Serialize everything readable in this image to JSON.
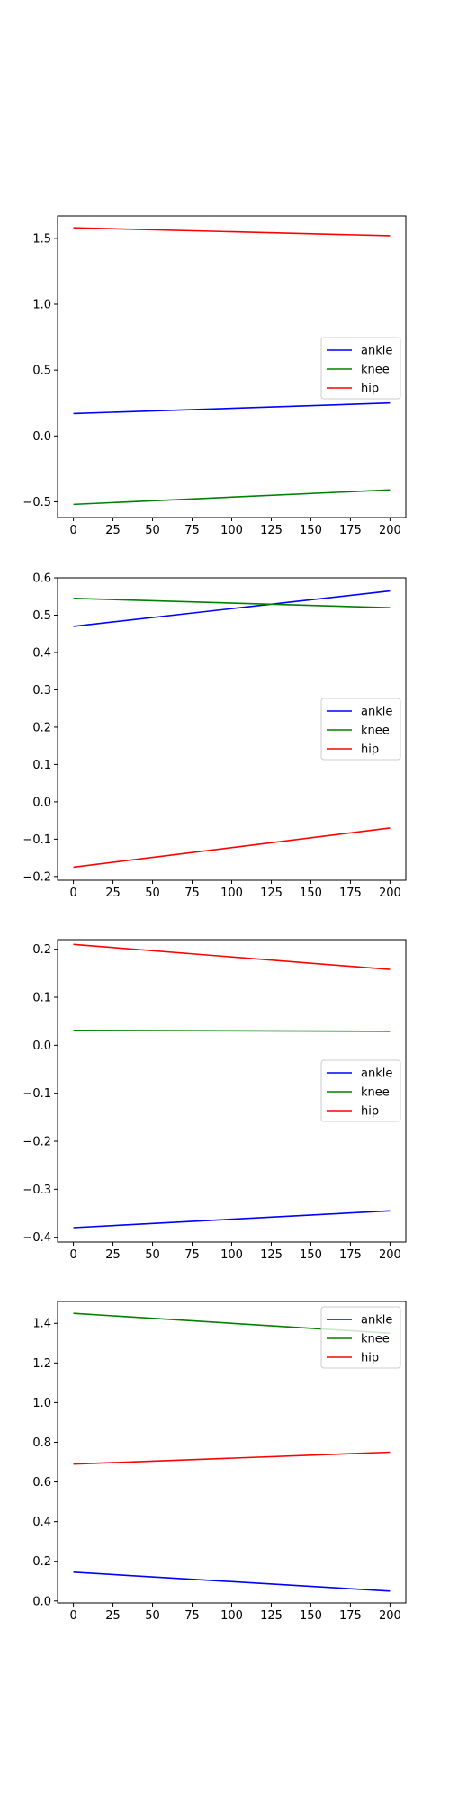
{
  "chart_data": [
    {
      "type": "line",
      "x": [
        0,
        200
      ],
      "xlim": [
        -10,
        210
      ],
      "ylim": [
        -0.62,
        1.67
      ],
      "xticks": [
        0,
        25,
        50,
        75,
        100,
        125,
        150,
        175,
        200
      ],
      "xtick_labels": [
        "0",
        "25",
        "50",
        "75",
        "100",
        "125",
        "150",
        "175",
        "200"
      ],
      "yticks": [
        -0.5,
        0.0,
        0.5,
        1.0,
        1.5
      ],
      "ytick_labels": [
        "−0.5",
        "0.0",
        "0.5",
        "1.0",
        "1.5"
      ],
      "legend_position": "center-right",
      "series": [
        {
          "name": "ankle",
          "color": "#0000ff",
          "values": [
            0.17,
            0.25
          ]
        },
        {
          "name": "knee",
          "color": "#008000",
          "values": [
            -0.52,
            -0.41
          ]
        },
        {
          "name": "hip",
          "color": "#ff0000",
          "values": [
            1.58,
            1.52
          ]
        }
      ]
    },
    {
      "type": "line",
      "x": [
        0,
        200
      ],
      "xlim": [
        -10,
        210
      ],
      "ylim": [
        -0.21,
        0.6
      ],
      "xticks": [
        0,
        25,
        50,
        75,
        100,
        125,
        150,
        175,
        200
      ],
      "xtick_labels": [
        "0",
        "25",
        "50",
        "75",
        "100",
        "125",
        "150",
        "175",
        "200"
      ],
      "yticks": [
        -0.2,
        -0.1,
        0.0,
        0.1,
        0.2,
        0.3,
        0.4,
        0.5,
        0.6
      ],
      "ytick_labels": [
        "−0.2",
        "−0.1",
        "0.0",
        "0.1",
        "0.2",
        "0.3",
        "0.4",
        "0.5",
        "0.6"
      ],
      "legend_position": "center-right",
      "series": [
        {
          "name": "ankle",
          "color": "#0000ff",
          "values": [
            0.47,
            0.565
          ]
        },
        {
          "name": "knee",
          "color": "#008000",
          "values": [
            0.545,
            0.52
          ]
        },
        {
          "name": "hip",
          "color": "#ff0000",
          "values": [
            -0.175,
            -0.07
          ]
        }
      ]
    },
    {
      "type": "line",
      "x": [
        0,
        200
      ],
      "xlim": [
        -10,
        210
      ],
      "ylim": [
        -0.41,
        0.22
      ],
      "xticks": [
        0,
        25,
        50,
        75,
        100,
        125,
        150,
        175,
        200
      ],
      "xtick_labels": [
        "0",
        "25",
        "50",
        "75",
        "100",
        "125",
        "150",
        "175",
        "200"
      ],
      "yticks": [
        -0.4,
        -0.3,
        -0.2,
        -0.1,
        0.0,
        0.1,
        0.2
      ],
      "ytick_labels": [
        "−0.4",
        "−0.3",
        "−0.2",
        "−0.1",
        "0.0",
        "0.1",
        "0.2"
      ],
      "legend_position": "center-right",
      "series": [
        {
          "name": "ankle",
          "color": "#0000ff",
          "values": [
            -0.38,
            -0.345
          ]
        },
        {
          "name": "knee",
          "color": "#008000",
          "values": [
            0.031,
            0.029
          ]
        },
        {
          "name": "hip",
          "color": "#ff0000",
          "values": [
            0.21,
            0.158
          ]
        }
      ]
    },
    {
      "type": "line",
      "x": [
        0,
        200
      ],
      "xlim": [
        -10,
        210
      ],
      "ylim": [
        -0.01,
        1.51
      ],
      "xticks": [
        0,
        25,
        50,
        75,
        100,
        125,
        150,
        175,
        200
      ],
      "xtick_labels": [
        "0",
        "25",
        "50",
        "75",
        "100",
        "125",
        "150",
        "175",
        "200"
      ],
      "yticks": [
        0.0,
        0.2,
        0.4,
        0.6,
        0.8,
        1.0,
        1.2,
        1.4
      ],
      "ytick_labels": [
        "0.0",
        "0.2",
        "0.4",
        "0.6",
        "0.8",
        "1.0",
        "1.2",
        "1.4"
      ],
      "legend_position": "top-right",
      "series": [
        {
          "name": "ankle",
          "color": "#0000ff",
          "values": [
            0.145,
            0.05
          ]
        },
        {
          "name": "knee",
          "color": "#008000",
          "values": [
            1.45,
            1.35
          ]
        },
        {
          "name": "hip",
          "color": "#ff0000",
          "values": [
            0.69,
            0.75
          ]
        }
      ]
    }
  ]
}
